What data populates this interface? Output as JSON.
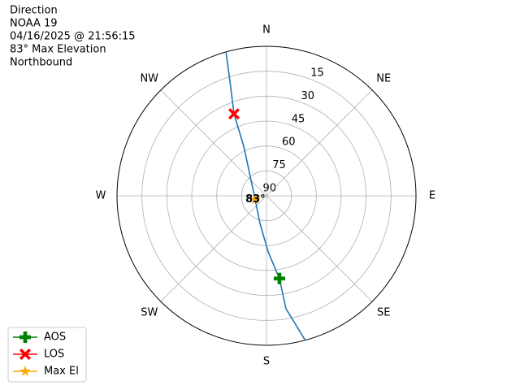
{
  "chart_data": {
    "type": "polar",
    "title_lines": [
      "Direction",
      "NOAA 19",
      "04/16/2025 @ 21:56:15",
      "83° Max Elevation",
      "Northbound"
    ],
    "direction": "clockwise",
    "zero": "N",
    "angle_ticks": [
      {
        "value": 0,
        "label": "N"
      },
      {
        "value": 45,
        "label": "NE"
      },
      {
        "value": 90,
        "label": "E"
      },
      {
        "value": 135,
        "label": "SE"
      },
      {
        "value": 180,
        "label": "S"
      },
      {
        "value": 225,
        "label": "SW"
      },
      {
        "value": 270,
        "label": "W"
      },
      {
        "value": 315,
        "label": "NW"
      }
    ],
    "ylim": [
      90,
      0
    ],
    "yticks": [
      90,
      75,
      60,
      45,
      30,
      15
    ],
    "grid": true,
    "legend": "lower left",
    "series": [
      {
        "color": "#1f77b4",
        "marker": "line",
        "theta": [
          165,
          170.2,
          171.1,
          178.3,
          193.2,
          270,
          335.3,
          338.4,
          342.3,
          344.3
        ],
        "r": [
          0,
          21,
          39.6,
          56.2,
          72.9,
          82.7,
          57.2,
          36.9,
          17.6,
          0
        ]
      },
      {
        "name": "AOS",
        "color": "#008000",
        "marker": "plus",
        "theta": [
          171.1
        ],
        "r": [
          39.6
        ]
      },
      {
        "name": "LOS",
        "color": "#ff0000",
        "marker": "x",
        "theta": [
          338.4
        ],
        "r": [
          36.9
        ]
      },
      {
        "name": "Max El",
        "color": "#ffa500",
        "marker": "star",
        "theta": [
          252
        ],
        "r": [
          83
        ],
        "value_labels": [
          "83°"
        ]
      }
    ]
  }
}
